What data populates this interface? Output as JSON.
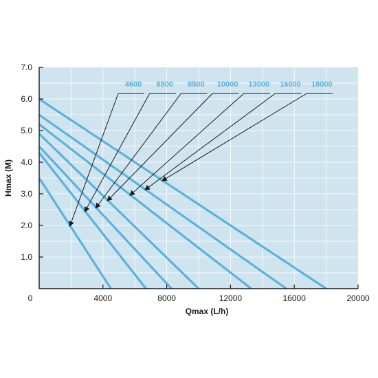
{
  "colors": {
    "plot_background": "#cfe4ef",
    "grid": "#ffffff",
    "curve": "#5ab3dc",
    "label": "#5ab3dc",
    "axis": "#1a1a1a",
    "pointer": "#1a1a1a"
  },
  "chart_data": {
    "type": "line",
    "xlabel": "Qmax (L/h)",
    "ylabel": "Hmax (M)",
    "xlim": [
      0,
      20000
    ],
    "ylim": [
      0,
      7
    ],
    "x_ticks": [
      0,
      4000,
      8000,
      12000,
      16000,
      20000
    ],
    "x_tick_labels": [
      "0",
      "4000",
      "8000",
      "12000",
      "16000",
      "20000"
    ],
    "y_ticks": [
      1,
      2,
      3,
      4,
      5,
      6,
      7
    ],
    "y_tick_labels": [
      "1.0",
      "2.0",
      "3.0",
      "4.0",
      "5.0",
      "6.0",
      "7.0"
    ],
    "grid": true,
    "legend": "labels with pointer arrows, top-right",
    "series": [
      {
        "name": "4600",
        "x": [
          0,
          4500
        ],
        "y": [
          3.5,
          0
        ]
      },
      {
        "name": "6500",
        "x": [
          0,
          6700
        ],
        "y": [
          4.3,
          0
        ]
      },
      {
        "name": "8500",
        "x": [
          0,
          8300
        ],
        "y": [
          4.5,
          0
        ]
      },
      {
        "name": "10000",
        "x": [
          0,
          10000
        ],
        "y": [
          4.9,
          0
        ]
      },
      {
        "name": "13000",
        "x": [
          0,
          13300
        ],
        "y": [
          5.2,
          0
        ]
      },
      {
        "name": "16000",
        "x": [
          0,
          15500
        ],
        "y": [
          5.5,
          0
        ]
      },
      {
        "name": "18000",
        "x": [
          0,
          18000
        ],
        "y": [
          6.0,
          0
        ]
      }
    ]
  }
}
